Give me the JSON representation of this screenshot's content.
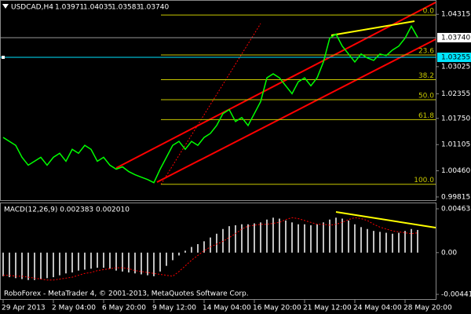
{
  "window": {
    "symbol_label": "USDCAD,H4",
    "ohlc": [
      "1.03971",
      "1.04035",
      "1.03583",
      "1.03740"
    ],
    "footer": "RoboForex - MetaTrader 4, © 2001-2013, MetaQuotes Software Corp."
  },
  "chart_data": [
    {
      "type": "line",
      "color": "#00ff00",
      "values": [
        1.01282,
        1.01185,
        1.01087,
        1.00793,
        1.00598,
        1.00695,
        1.00793,
        1.00598,
        1.00793,
        1.00891,
        1.00695,
        1.00989,
        1.00891,
        1.01087,
        1.00989,
        1.00695,
        1.00793,
        1.00598,
        1.005,
        1.00558,
        1.00441,
        1.00363,
        1.00304,
        1.00245,
        1.00167,
        1.005,
        1.00793,
        1.01087,
        1.01185,
        1.00989,
        1.01185,
        1.01087,
        1.01282,
        1.0138,
        1.01576,
        1.01869,
        1.01967,
        1.01674,
        1.01772,
        1.01576,
        1.01869,
        1.02163,
        1.0275,
        1.02848,
        1.0275,
        1.02554,
        1.02359,
        1.02652,
        1.0275,
        1.02554,
        1.0275,
        1.03141,
        1.03728,
        1.03826,
        1.03532,
        1.03337,
        1.03141,
        1.03337,
        1.03239,
        1.0318,
        1.03337,
        1.03298,
        1.03435,
        1.03532,
        1.03728,
        1.04022,
        1.03748
      ],
      "categories": [
        "29 Apr 2013",
        null,
        null,
        null,
        null,
        null,
        null,
        null,
        "2 May 04:00",
        null,
        null,
        null,
        null,
        null,
        null,
        null,
        "6 May 20:00",
        null,
        null,
        null,
        null,
        null,
        null,
        null,
        "9 May 12:00",
        null,
        null,
        null,
        null,
        null,
        null,
        null,
        "14 May 04:00",
        null,
        null,
        null,
        null,
        null,
        null,
        null,
        "16 May 20:00",
        null,
        null,
        null,
        null,
        null,
        null,
        null,
        "21 May 12:00",
        null,
        null,
        null,
        null,
        null,
        null,
        null,
        "24 May 04:00",
        null,
        null,
        null,
        null,
        null,
        null,
        null,
        "28 May 20:00",
        null,
        null
      ],
      "ylim": [
        0.99717,
        1.04667
      ],
      "yticks": [
        1.04315,
        1.03025,
        1.02355,
        {
          "value": 1.0175,
          "label": "1.01750"
        },
        1.01105,
        {
          "value": 1.0046,
          "label": "1.00460"
        },
        0.99815
      ],
      "current_price": {
        "value": 1.0374,
        "label": "1.03740"
      },
      "hline": {
        "value": 1.03255,
        "label": "1.03255",
        "color": "#00e5ff"
      },
      "fibonacci": {
        "high": 1.04296,
        "low": 1.00128,
        "color": "#c8c800",
        "levels": [
          {
            "value": 0,
            "label": "0.0"
          },
          23.6,
          38.2,
          {
            "value": 50,
            "label": "50.0"
          },
          61.8,
          {
            "value": 100,
            "label": "100.0"
          }
        ]
      }
    },
    {
      "type": "bar",
      "title": "MACD(12,26,9) 0.002383 0.002010",
      "color": "#c0c0c0",
      "signal_color": "#ff0000",
      "values": [
        -0.0025,
        -0.0026,
        -0.0027,
        -0.0028,
        -0.0029,
        -0.0029,
        -0.0028,
        -0.0027,
        -0.0026,
        -0.0024,
        -0.0022,
        -0.0021,
        -0.0019,
        -0.0018,
        -0.0017,
        -0.0016,
        -0.0016,
        -0.0017,
        -0.0019,
        -0.002,
        -0.0021,
        -0.0022,
        -0.0023,
        -0.0024,
        -0.0025,
        -0.002,
        -0.0014,
        -0.0008,
        -0.0003,
        0.0002,
        0.0006,
        0.0009,
        0.0012,
        0.0016,
        0.002,
        0.0025,
        0.0028,
        0.0029,
        0.003,
        0.003,
        0.0031,
        0.0032,
        0.0035,
        0.0037,
        0.0036,
        0.0034,
        0.0032,
        0.003,
        0.003,
        0.0029,
        0.003,
        0.0032,
        0.0035,
        0.0037,
        0.0036,
        0.0034,
        0.003,
        0.0027,
        0.0025,
        0.0023,
        0.0022,
        0.0021,
        0.002,
        0.0021,
        0.0023,
        0.0025,
        0.0024
      ],
      "signal": [
        -0.0024,
        -0.0024,
        -0.0025,
        -0.0025,
        -0.0026,
        -0.0027,
        -0.0028,
        -0.0029,
        -0.0029,
        -0.0028,
        -0.0027,
        -0.0026,
        -0.0024,
        -0.0022,
        -0.0021,
        -0.0019,
        -0.0018,
        -0.0017,
        -0.0016,
        -0.0016,
        -0.0017,
        -0.0019,
        -0.002,
        -0.0021,
        -0.0022,
        -0.0023,
        -0.0024,
        -0.0025,
        -0.002,
        -0.0014,
        -0.0008,
        -0.0003,
        0.0002,
        0.0006,
        0.0009,
        0.0012,
        0.0016,
        0.002,
        0.0025,
        0.0028,
        0.0029,
        0.003,
        0.003,
        0.0031,
        0.0032,
        0.0035,
        0.0037,
        0.0036,
        0.0034,
        0.0032,
        0.003,
        0.003,
        0.0029,
        0.003,
        0.0032,
        0.0035,
        0.0037,
        0.0036,
        0.0034,
        0.003,
        0.0027,
        0.0025,
        0.0023,
        0.0022,
        0.0021,
        0.002,
        0.0021
      ],
      "ylim": [
        -0.005001,
        0.005303
      ],
      "yticks": [
        0.004638,
        {
          "value": 0,
          "label": "0.00"
        },
        -0.004419
      ]
    }
  ]
}
